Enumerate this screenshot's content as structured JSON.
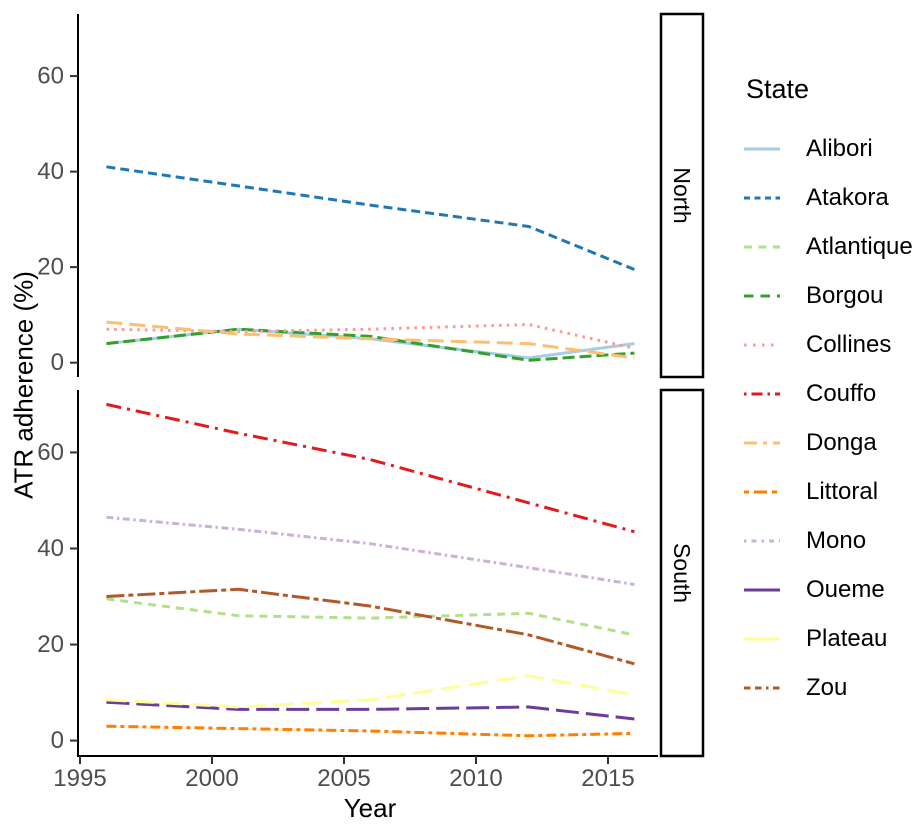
{
  "chart_data": {
    "type": "line",
    "title": "",
    "xlabel": "Year",
    "ylabel": "ATR adherence (%)",
    "legend_title": "State",
    "legend_position": "right",
    "grid": false,
    "x": [
      1996,
      2001,
      2006,
      2012,
      2016
    ],
    "x_ticks": [
      "1995",
      "2000",
      "2005",
      "2010",
      "2015"
    ],
    "y_ticks": [
      "0",
      "20",
      "40",
      "60"
    ],
    "xlim": [
      1994.9,
      2017.0
    ],
    "ylim": [
      0,
      73
    ],
    "facets": [
      {
        "label": "North",
        "series": [
          {
            "name": "Alibori",
            "color": "#A6CEE3",
            "dash": null,
            "values": [
              4,
              7,
              5,
              1,
              4
            ]
          },
          {
            "name": "Atakora",
            "color": "#1F78B4",
            "dash": "9 5",
            "values": [
              41,
              37,
              33,
              28.5,
              19.5
            ]
          },
          {
            "name": "Borgou",
            "color": "#33A02C",
            "dash": "12 5",
            "values": [
              4,
              7,
              5.5,
              0.5,
              2
            ]
          },
          {
            "name": "Collines",
            "color": "#FB9A99",
            "dash": "2.7 5",
            "values": [
              7,
              6.5,
              7,
              8,
              3
            ]
          },
          {
            "name": "Donga",
            "color": "#FDBF6F",
            "dash": "16 7",
            "values": [
              8.5,
              6,
              5,
              4,
              1
            ]
          }
        ]
      },
      {
        "label": "South",
        "series": [
          {
            "name": "Atlantique",
            "color": "#B2DF8A",
            "dash": "8 6",
            "values": [
              29.5,
              26,
              25.5,
              26.5,
              22
            ]
          },
          {
            "name": "Couffo",
            "color": "#E31A1C",
            "dash": "15 6 3 6",
            "values": [
              70,
              64,
              58.5,
              49.5,
              43.5
            ]
          },
          {
            "name": "Littoral",
            "color": "#FF7F00",
            "dash": "10 4 4 4",
            "values": [
              3,
              2.5,
              2,
              1,
              1.5
            ]
          },
          {
            "name": "Mono",
            "color": "#CAB2D6",
            "dash": "7 3.5 2.5 3.5",
            "values": [
              46.5,
              44,
              41,
              36,
              32.5
            ]
          },
          {
            "name": "Oueme",
            "color": "#6A3D9A",
            "dash": "23 7",
            "values": [
              8,
              6.5,
              6.5,
              7,
              4.5
            ]
          },
          {
            "name": "Plateau",
            "color": "#FFFF99",
            "dash": "20 8",
            "values": [
              8.5,
              7,
              8.5,
              13.5,
              9.5
            ]
          },
          {
            "name": "Zou",
            "color": "#B15928",
            "dash": "18 4 5 4",
            "values": [
              30,
              31.5,
              28,
              22,
              16
            ]
          }
        ]
      }
    ],
    "legend": [
      {
        "label": "Alibori",
        "color": "#A6CEE3",
        "key_dash": null
      },
      {
        "label": "Atakora",
        "color": "#1F78B4",
        "key_dash": "6 4.5"
      },
      {
        "label": "Atlantique",
        "color": "#B2DF8A",
        "key_dash": "8 6.5"
      },
      {
        "label": "Borgou",
        "color": "#33A02C",
        "key_dash": "9.5 7"
      },
      {
        "label": "Collines",
        "color": "#FB9A99",
        "key_dash": "2.5 6.5"
      },
      {
        "label": "Couffo",
        "color": "#E31A1C",
        "key_dash": "2.5 5 11 5"
      },
      {
        "label": "Donga",
        "color": "#FDBF6F",
        "key_dash": "13 6 4 6"
      },
      {
        "label": "Littoral",
        "color": "#FF7F00",
        "key_dash": "5 5 13 5"
      },
      {
        "label": "Mono",
        "color": "#CAB2D6",
        "key_dash": "2.5 5 5 5"
      },
      {
        "label": "Oueme",
        "color": "#6A3D9A",
        "key_dash": null
      },
      {
        "label": "Plateau",
        "color": "#FFFF99",
        "key_dash": null
      },
      {
        "label": "Zou",
        "color": "#B15928",
        "key_dash": "6.5 4.5 6.5 4.5 2.5 4.5"
      }
    ],
    "style_colors": {
      "axis_line": "#000000",
      "tick_mark": "#333333",
      "tick_label": "#4d4d4d",
      "strip_border": "#000000",
      "strip_fill": "#ffffff"
    }
  }
}
